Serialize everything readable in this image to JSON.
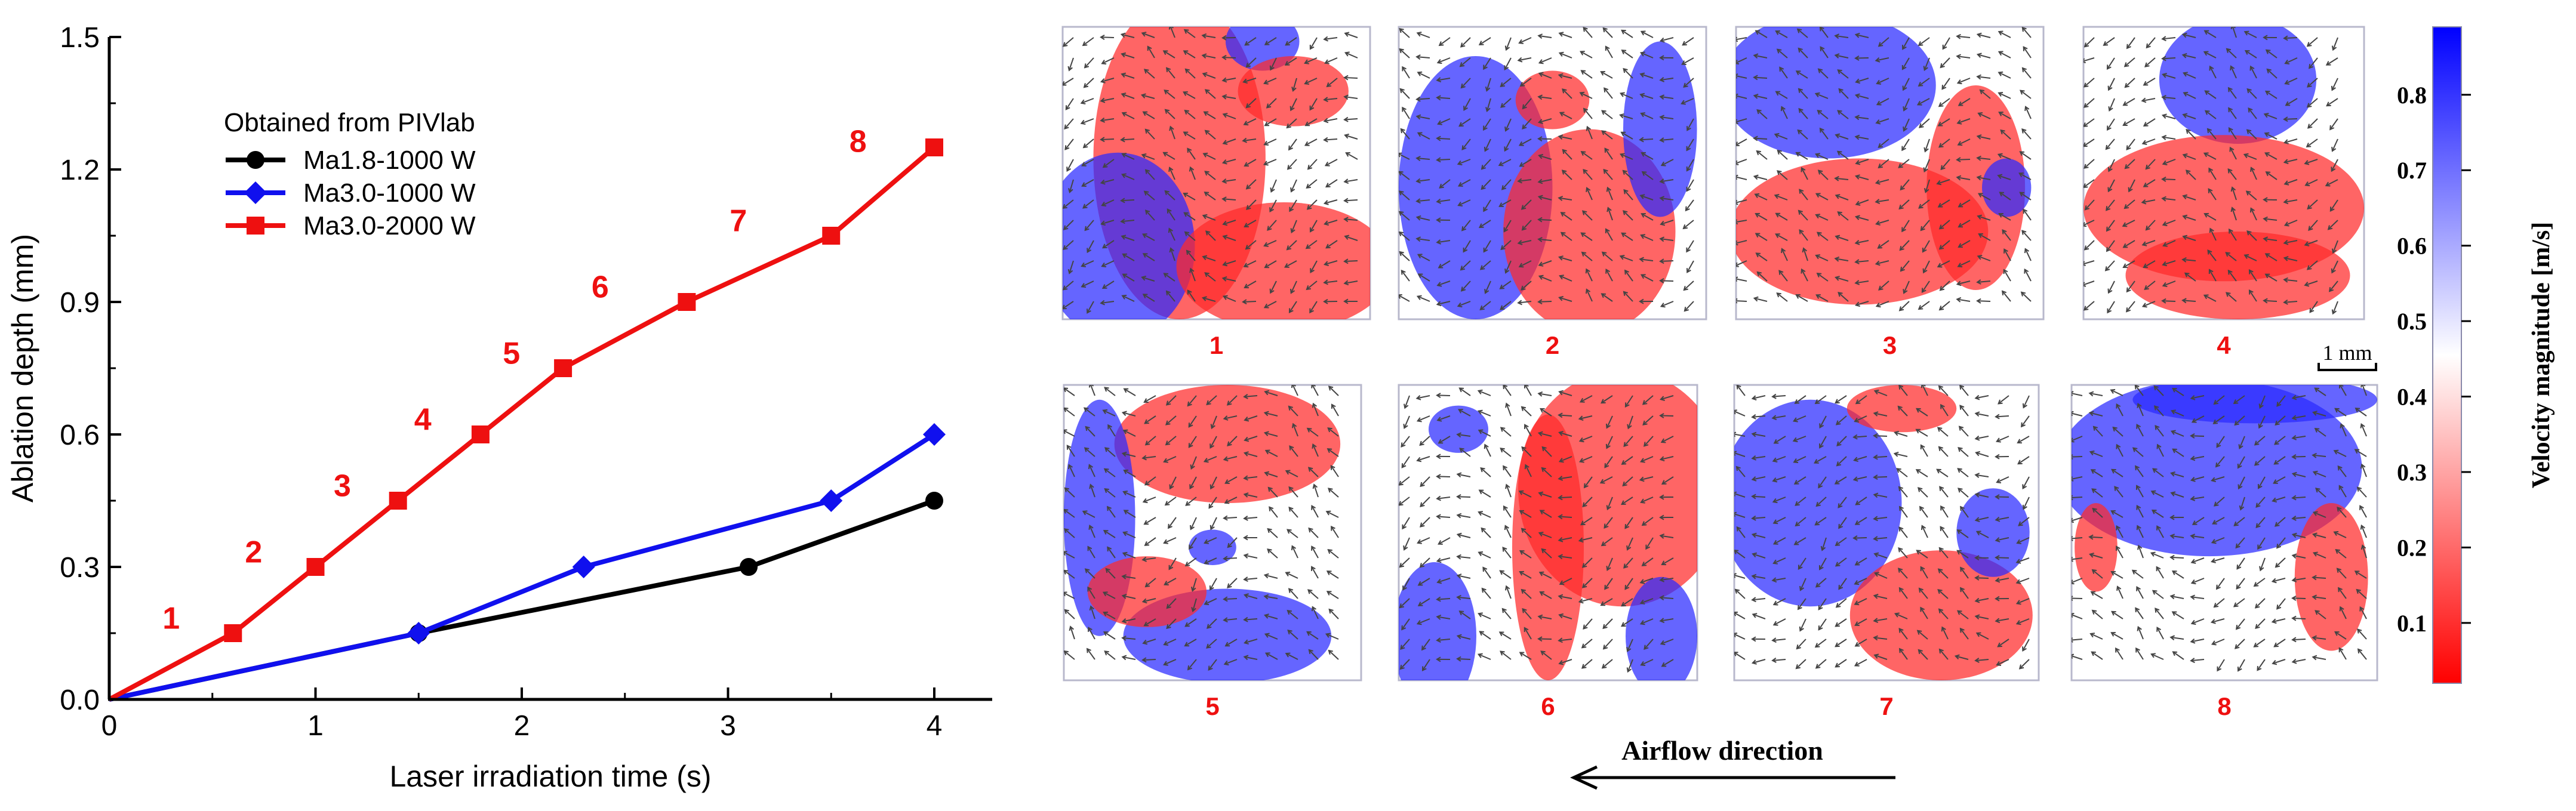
{
  "chart_data": [
    {
      "type": "line",
      "xlabel": "Laser irradiation time (s)",
      "ylabel": "Ablation depth (mm)",
      "xlim": [
        0,
        4.3
      ],
      "ylim": [
        0,
        1.5
      ],
      "xticks": [
        "0",
        "1",
        "2",
        "3",
        "4"
      ],
      "yticks": [
        "0.0",
        "0.3",
        "0.6",
        "0.9",
        "1.2",
        "1.5"
      ],
      "legend_title": "Obtained from PIVlab",
      "legend_position": "top-left",
      "series": [
        {
          "name": "Ma1.8-1000 W",
          "color": "#000000",
          "marker": "circle",
          "x": [
            0,
            1.5,
            3.1,
            4.0
          ],
          "y": [
            0,
            0.15,
            0.3,
            0.45
          ]
        },
        {
          "name": "Ma3.0-1000 W",
          "color": "#1010ee",
          "marker": "diamond",
          "x": [
            0,
            1.5,
            2.3,
            3.5,
            4.0
          ],
          "y": [
            0,
            0.15,
            0.3,
            0.45,
            0.6
          ]
        },
        {
          "name": "Ma3.0-2000 W",
          "color": "#ee1010",
          "marker": "square",
          "x": [
            0,
            0.6,
            1.0,
            1.4,
            1.8,
            2.2,
            2.8,
            3.5,
            4.0
          ],
          "y": [
            0,
            0.15,
            0.3,
            0.45,
            0.6,
            0.75,
            0.9,
            1.05,
            1.25
          ]
        }
      ],
      "annotations": [
        {
          "text": "1",
          "x": 0.3,
          "y": 0.16
        },
        {
          "text": "2",
          "x": 0.7,
          "y": 0.31
        },
        {
          "text": "3",
          "x": 1.13,
          "y": 0.46
        },
        {
          "text": "4",
          "x": 1.52,
          "y": 0.61
        },
        {
          "text": "5",
          "x": 1.95,
          "y": 0.76
        },
        {
          "text": "6",
          "x": 2.38,
          "y": 0.91
        },
        {
          "text": "7",
          "x": 3.05,
          "y": 1.06
        },
        {
          "text": "8",
          "x": 3.63,
          "y": 1.24
        }
      ]
    },
    {
      "type": "heatmap",
      "colorbar_label": "Velocity magnitude [m/s]",
      "colorbar_range": [
        0.02,
        0.89
      ],
      "colorbar_ticks": [
        "0.1",
        "0.2",
        "0.3",
        "0.4",
        "0.5",
        "0.6",
        "0.7",
        "0.8"
      ],
      "colormap": [
        "#ff0000",
        "#ffffff",
        "#0000ff"
      ],
      "panel_labels": [
        "1",
        "2",
        "3",
        "4",
        "5",
        "6",
        "7",
        "8"
      ],
      "scale_bar": "1 mm",
      "flow_label": "Airflow direction"
    }
  ]
}
